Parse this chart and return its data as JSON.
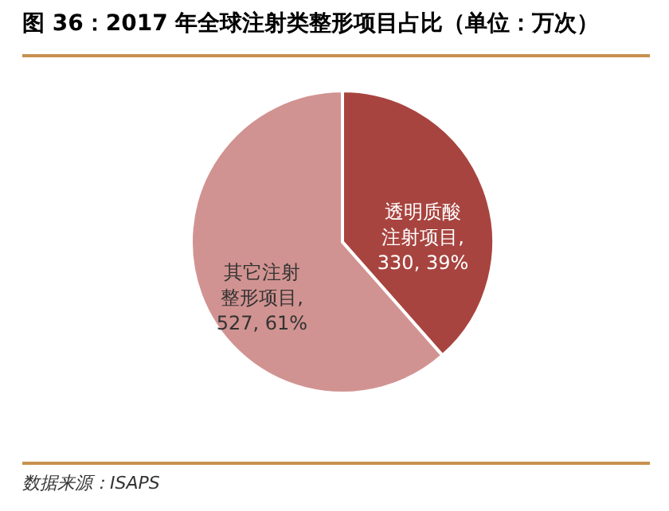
{
  "chart_data": {
    "type": "pie",
    "title": "图 36：2017 年全球注射类整形项目占比（单位：万次）",
    "categories": [
      "透明质酸注射项目",
      "其它注射整形项目"
    ],
    "values": [
      330,
      527
    ],
    "colors": [
      "#a8443f",
      "#d19391"
    ],
    "value_labels": [
      ", 330, 39%",
      ", 527, 61%"
    ],
    "annotations": [
      "数据来源：ISAPS"
    ]
  }
}
